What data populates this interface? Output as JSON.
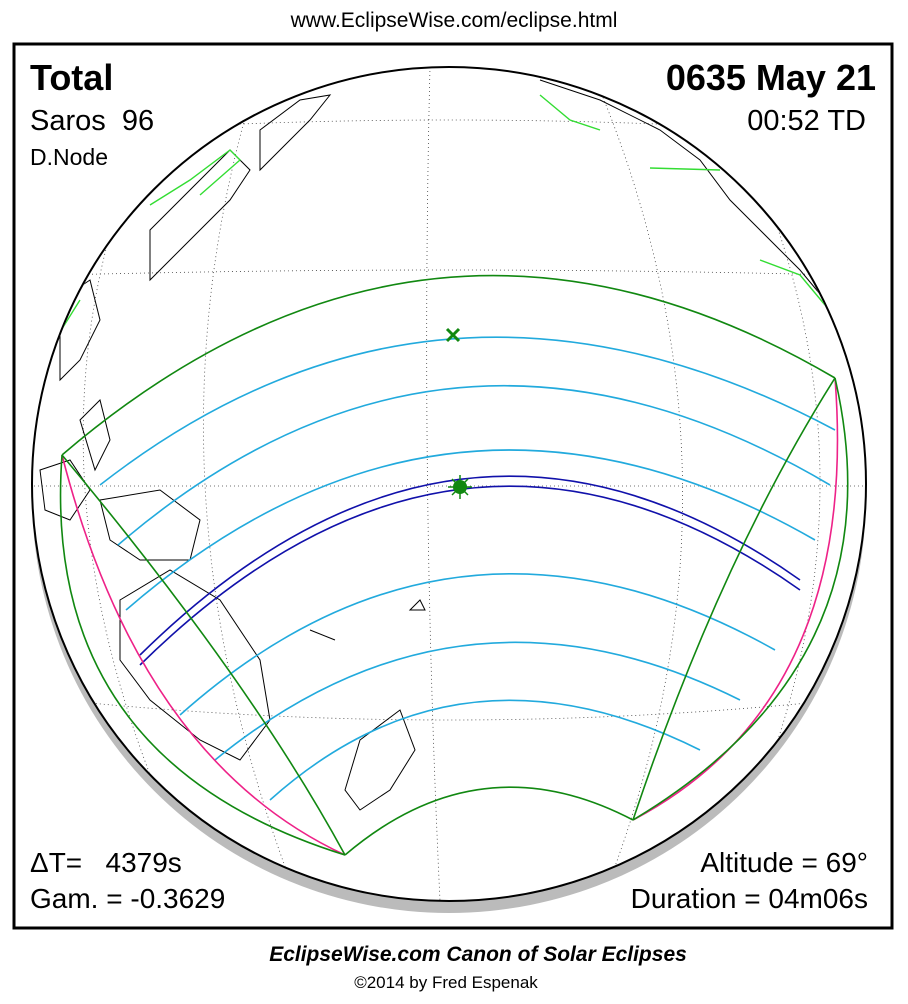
{
  "header": {
    "url": "www.EclipseWise.com/eclipse.html"
  },
  "eclipse": {
    "type": "Total",
    "date": "0635 May 21",
    "saros": "Saros  96",
    "time": "00:52 TD",
    "node": "D.Node",
    "delta_t": "ΔT=   4379s",
    "gamma": "Gam. = -0.3629",
    "altitude": "Altitude = 69°",
    "duration": "Duration = 04m06s"
  },
  "footer": {
    "title": "EclipseWise.com Canon of Solar Eclipses",
    "copyright": "©2014 by Fred Espenak"
  }
}
